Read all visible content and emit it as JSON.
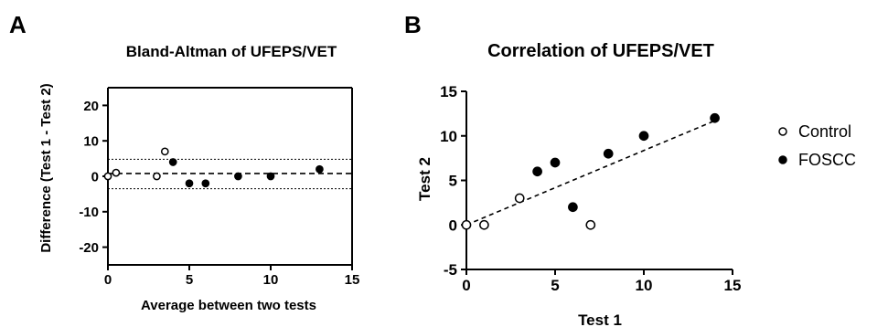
{
  "panels": {
    "a_label": "A",
    "b_label": "B"
  },
  "chart_data": [
    {
      "type": "scatter",
      "title": "Bland-Altman of UFEPS/VET",
      "xlabel": "Average between two tests",
      "ylabel": "Difference (Test 1 - Test 2)",
      "xlim": [
        0,
        15
      ],
      "ylim": [
        -25,
        25
      ],
      "x_ticks": [
        0,
        5,
        10,
        15
      ],
      "y_ticks": [
        -20,
        -10,
        0,
        10,
        20
      ],
      "mean_line": 0.8,
      "limits_of_agreement": [
        -3.5,
        4.8
      ],
      "series": [
        {
          "name": "Control",
          "marker": "open",
          "points": [
            [
              0,
              0
            ],
            [
              0.5,
              1
            ],
            [
              3,
              0
            ],
            [
              3.5,
              7
            ]
          ]
        },
        {
          "name": "FOSCC",
          "marker": "filled",
          "points": [
            [
              4,
              4
            ],
            [
              5,
              -2
            ],
            [
              6,
              -2
            ],
            [
              8,
              0
            ],
            [
              10,
              0
            ],
            [
              13,
              2
            ]
          ]
        }
      ],
      "grid": false
    },
    {
      "type": "scatter",
      "title": "Correlation of UFEPS/VET",
      "xlabel": "Test 1",
      "ylabel": "Test 2",
      "xlim": [
        0,
        15
      ],
      "ylim": [
        -5,
        15
      ],
      "x_ticks": [
        0,
        5,
        10,
        15
      ],
      "y_ticks": [
        -5,
        0,
        5,
        10,
        15
      ],
      "regression_line": [
        [
          0,
          0
        ],
        [
          14,
          11.7
        ]
      ],
      "series": [
        {
          "name": "Control",
          "marker": "open",
          "points": [
            [
              0,
              0
            ],
            [
              1,
              0
            ],
            [
              3,
              3
            ],
            [
              7,
              0
            ]
          ]
        },
        {
          "name": "FOSCC",
          "marker": "filled",
          "points": [
            [
              4,
              6
            ],
            [
              5,
              7
            ],
            [
              6,
              2
            ],
            [
              8,
              8
            ],
            [
              10,
              10
            ],
            [
              14,
              12
            ]
          ]
        }
      ],
      "grid": false,
      "legend_position": "right",
      "legend": [
        {
          "name": "Control",
          "marker": "open"
        },
        {
          "name": "FOSCC",
          "marker": "filled"
        }
      ]
    }
  ]
}
